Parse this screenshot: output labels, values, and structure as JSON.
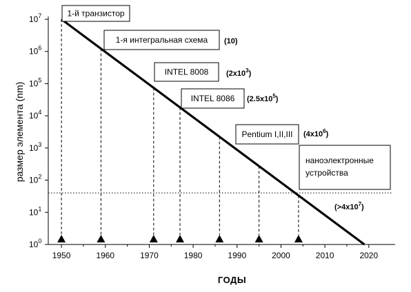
{
  "chart_data": {
    "type": "line",
    "title": "",
    "xlabel": "годы",
    "ylabel": "размер элемента (nm)",
    "xlim": [
      1947,
      2026
    ],
    "ylim_log10": [
      0,
      7
    ],
    "yscale": "log",
    "grid": false,
    "x_ticks": [
      1950,
      1960,
      1970,
      1980,
      1990,
      2000,
      2010,
      2020
    ],
    "y_ticks": [
      {
        "base": "10",
        "exp": "0"
      },
      {
        "base": "10",
        "exp": "1"
      },
      {
        "base": "10",
        "exp": "2"
      },
      {
        "base": "10",
        "exp": "3"
      },
      {
        "base": "10",
        "exp": "4"
      },
      {
        "base": "10",
        "exp": "5"
      },
      {
        "base": "10",
        "exp": "6"
      },
      {
        "base": "10",
        "exp": "7"
      }
    ],
    "series": [
      {
        "x": [
          1950,
          2019
        ],
        "y": [
          10000000,
          1
        ]
      }
    ],
    "threshold_y": 40,
    "milestones": [
      {
        "year": 1950,
        "label": "1-й транзистор",
        "note_text": ""
      },
      {
        "year": 1959,
        "label": "1-я интегральная схема",
        "note_text": "(10)"
      },
      {
        "year": 1971,
        "label": "INTEL 8008",
        "note_text": "(2x10",
        "note_sup": "3",
        "note_end": ")"
      },
      {
        "year": 1977,
        "label": "INTEL 8086",
        "note_text": "(2.5x10",
        "note_sup": "5",
        "note_end": ")"
      },
      {
        "year": 1986,
        "label": "",
        "note_text": ""
      },
      {
        "year": 1995,
        "label": "Pentium I,II,III",
        "note_text": "(4x10",
        "note_sup": "6",
        "note_end": ")"
      },
      {
        "year": 2004,
        "label": "",
        "note_text": ""
      }
    ],
    "region_box": {
      "line1": "наноэлектронные",
      "line2": "устройства"
    },
    "region_note": {
      "text": "(>4x10",
      "sup": "7",
      "end": ")"
    }
  }
}
